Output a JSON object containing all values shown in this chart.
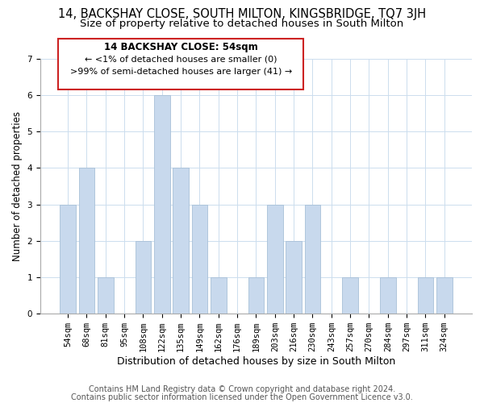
{
  "title": "14, BACKSHAY CLOSE, SOUTH MILTON, KINGSBRIDGE, TQ7 3JH",
  "subtitle": "Size of property relative to detached houses in South Milton",
  "xlabel": "Distribution of detached houses by size in South Milton",
  "ylabel": "Number of detached properties",
  "categories": [
    "54sqm",
    "68sqm",
    "81sqm",
    "95sqm",
    "108sqm",
    "122sqm",
    "135sqm",
    "149sqm",
    "162sqm",
    "176sqm",
    "189sqm",
    "203sqm",
    "216sqm",
    "230sqm",
    "243sqm",
    "257sqm",
    "270sqm",
    "284sqm",
    "297sqm",
    "311sqm",
    "324sqm"
  ],
  "values": [
    3,
    4,
    1,
    0,
    2,
    6,
    4,
    3,
    1,
    0,
    1,
    3,
    2,
    3,
    0,
    1,
    0,
    1,
    0,
    1,
    1
  ],
  "bar_color": "#c8d9ed",
  "bar_edge_color": "#a8c0d8",
  "annotation_box_edge_color": "#cc2222",
  "annotation_line1": "14 BACKSHAY CLOSE: 54sqm",
  "annotation_line2": "← <1% of detached houses are smaller (0)",
  "annotation_line3": ">99% of semi-detached houses are larger (41) →",
  "ylim": [
    0,
    7
  ],
  "yticks": [
    0,
    1,
    2,
    3,
    4,
    5,
    6,
    7
  ],
  "footer_line1": "Contains HM Land Registry data © Crown copyright and database right 2024.",
  "footer_line2": "Contains public sector information licensed under the Open Government Licence v3.0.",
  "background_color": "#ffffff",
  "title_fontsize": 10.5,
  "subtitle_fontsize": 9.5,
  "xlabel_fontsize": 9,
  "ylabel_fontsize": 8.5,
  "tick_fontsize": 7.5,
  "footer_fontsize": 7,
  "ann_fontsize": 8.5
}
